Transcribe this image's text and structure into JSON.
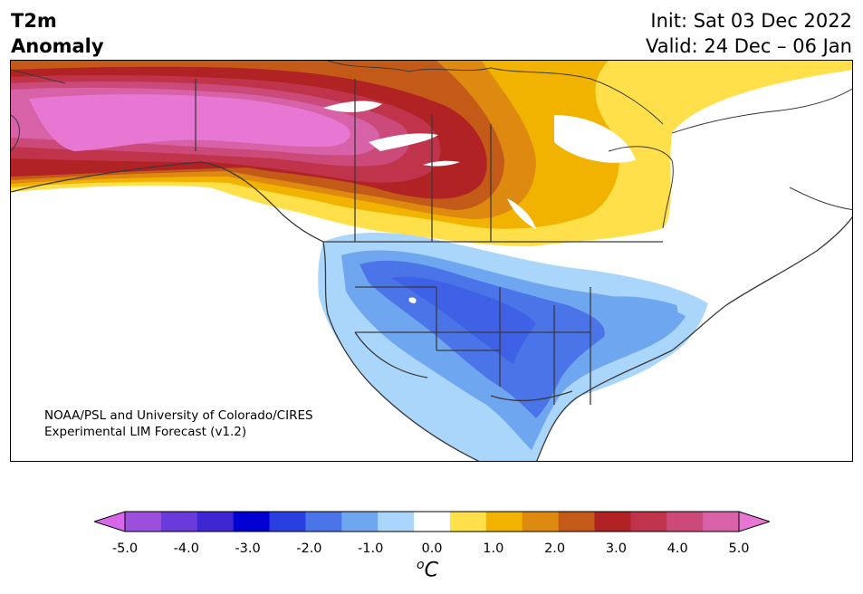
{
  "header": {
    "title_line1": "T2m",
    "title_line2": "Anomaly",
    "init": "Init: Sat 03 Dec 2022",
    "valid": "Valid: 24 Dec – 06 Jan"
  },
  "credit": {
    "line1": "NOAA/PSL and University of Colorado/CIRES",
    "line2": "Experimental LIM Forecast (v1.2)"
  },
  "colorbar": {
    "colors": [
      "#d666ea",
      "#9b4fdc",
      "#6a3adb",
      "#3e27d3",
      "#0000d2",
      "#2a3fdf",
      "#4a74e8",
      "#6fa6f0",
      "#abd6fb",
      "#ffffff",
      "#ffe04a",
      "#f2b300",
      "#de8a10",
      "#c45a18",
      "#b02223",
      "#c0344b",
      "#cc4a7a",
      "#d762a8",
      "#e877d4"
    ],
    "ticks": [
      "-5.0",
      "-4.0",
      "-3.0",
      "-2.0",
      "-1.0",
      "0.0",
      "1.0",
      "2.0",
      "3.0",
      "4.0",
      "5.0"
    ],
    "unit_base": "C",
    "unit_super": "o"
  }
}
